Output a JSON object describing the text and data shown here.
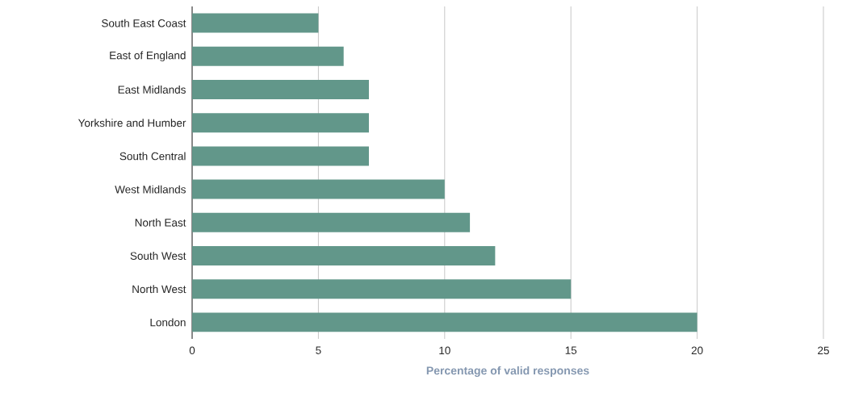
{
  "chart_data": {
    "type": "bar",
    "orientation": "horizontal",
    "xlabel": "Percentage of valid responses",
    "categories": [
      "South East Coast",
      "East of England",
      "East Midlands",
      "Yorkshire and Humber",
      "South Central",
      "West Midlands",
      "North East",
      "South West",
      "North West",
      "London"
    ],
    "values": [
      5,
      6,
      7,
      7,
      7,
      10,
      11,
      12,
      15,
      20
    ],
    "color": "#62978a",
    "xlim": [
      0,
      25
    ],
    "xticks": [
      0,
      5,
      10,
      15,
      20,
      25
    ],
    "grid": "x"
  }
}
